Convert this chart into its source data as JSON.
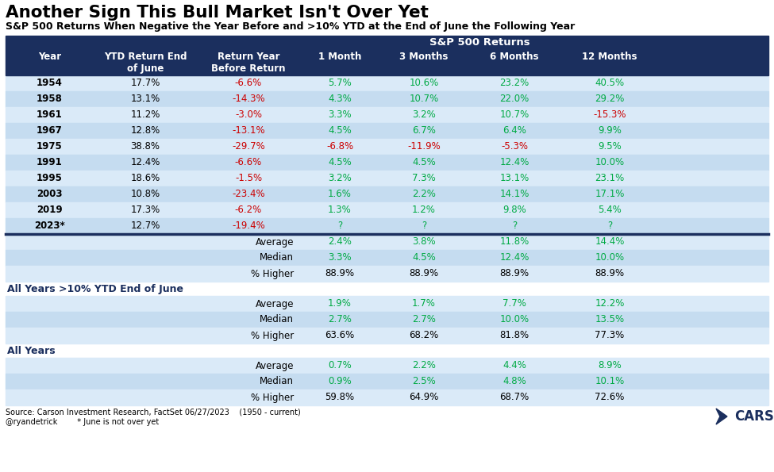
{
  "title": "Another Sign This Bull Market Isn't Over Yet",
  "subtitle": "S&P 500 Returns When Negative the Year Before and >10% YTD at the End of June the Following Year",
  "sp500_returns_label": "S&P 500 Returns",
  "col_headers": [
    "Year",
    "YTD Return End\nof June",
    "Return Year\nBefore Return",
    "1 Month",
    "3 Months",
    "6 Months",
    "12 Months"
  ],
  "data_rows": [
    [
      "1954",
      "17.7%",
      "-6.6%",
      "5.7%",
      "10.6%",
      "23.2%",
      "40.5%"
    ],
    [
      "1958",
      "13.1%",
      "-14.3%",
      "4.3%",
      "10.7%",
      "22.0%",
      "29.2%"
    ],
    [
      "1961",
      "11.2%",
      "-3.0%",
      "3.3%",
      "3.2%",
      "10.7%",
      "-15.3%"
    ],
    [
      "1967",
      "12.8%",
      "-13.1%",
      "4.5%",
      "6.7%",
      "6.4%",
      "9.9%"
    ],
    [
      "1975",
      "38.8%",
      "-29.7%",
      "-6.8%",
      "-11.9%",
      "-5.3%",
      "9.5%"
    ],
    [
      "1991",
      "12.4%",
      "-6.6%",
      "4.5%",
      "4.5%",
      "12.4%",
      "10.0%"
    ],
    [
      "1995",
      "18.6%",
      "-1.5%",
      "3.2%",
      "7.3%",
      "13.1%",
      "23.1%"
    ],
    [
      "2003",
      "10.8%",
      "-23.4%",
      "1.6%",
      "2.2%",
      "14.1%",
      "17.1%"
    ],
    [
      "2019",
      "17.3%",
      "-6.2%",
      "1.3%",
      "1.2%",
      "9.8%",
      "5.4%"
    ],
    [
      "2023*",
      "12.7%",
      "-19.4%",
      "?",
      "?",
      "?",
      "?"
    ]
  ],
  "stats_rows": [
    [
      "Average",
      "",
      "",
      "2.4%",
      "3.8%",
      "11.8%",
      "14.4%"
    ],
    [
      "Median",
      "",
      "",
      "3.3%",
      "4.5%",
      "12.4%",
      "10.0%"
    ],
    [
      "% Higher",
      "",
      "",
      "88.9%",
      "88.9%",
      "88.9%",
      "88.9%"
    ]
  ],
  "section2_label": "All Years >10% YTD End of June",
  "section2_rows": [
    [
      "Average",
      "",
      "",
      "1.9%",
      "1.7%",
      "7.7%",
      "12.2%"
    ],
    [
      "Median",
      "",
      "",
      "2.7%",
      "2.7%",
      "10.0%",
      "13.5%"
    ],
    [
      "% Higher",
      "",
      "",
      "63.6%",
      "68.2%",
      "81.8%",
      "77.3%"
    ]
  ],
  "section3_label": "All Years",
  "section3_rows": [
    [
      "Average",
      "",
      "",
      "0.7%",
      "2.2%",
      "4.4%",
      "8.9%"
    ],
    [
      "Median",
      "",
      "",
      "0.9%",
      "2.5%",
      "4.8%",
      "10.1%"
    ],
    [
      "% Higher",
      "",
      "",
      "59.8%",
      "64.9%",
      "68.7%",
      "72.6%"
    ]
  ],
  "footer_text1": "Source: Carson Investment Research, FactSet 06/27/2023    (1950 - current)",
  "footer_text2": "@ryandetrick        * June is not over yet",
  "positive_color": "#00aa44",
  "negative_color": "#cc0000",
  "neutral_color": "#000000",
  "question_color": "#00aa44",
  "dark_blue": "#1b2f5e",
  "light_blue1": "#daeaf8",
  "light_blue2": "#c5dcf0",
  "white": "#ffffff"
}
